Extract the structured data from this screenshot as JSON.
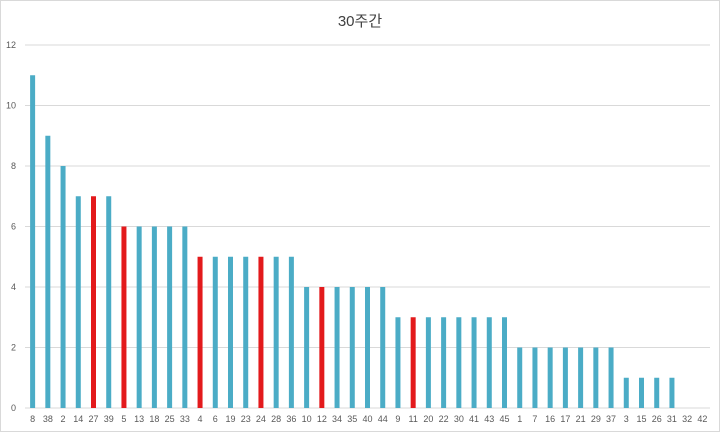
{
  "chart_data": {
    "type": "bar",
    "title": "30주간",
    "xlabel": "",
    "ylabel": "",
    "ylim": [
      0,
      12
    ],
    "ytick_step": 2,
    "grid": true,
    "legend": "none",
    "colors": {
      "default": "#4bacc6",
      "highlight": "#e31a1c",
      "grid": "#d9d9d9"
    },
    "categories": [
      "8",
      "38",
      "2",
      "14",
      "27",
      "39",
      "5",
      "13",
      "18",
      "25",
      "33",
      "4",
      "6",
      "19",
      "23",
      "24",
      "28",
      "36",
      "10",
      "12",
      "34",
      "35",
      "40",
      "44",
      "9",
      "11",
      "20",
      "22",
      "30",
      "41",
      "43",
      "45",
      "1",
      "7",
      "16",
      "17",
      "21",
      "29",
      "37",
      "3",
      "15",
      "26",
      "31",
      "32",
      "42"
    ],
    "values": [
      11,
      9,
      8,
      7,
      7,
      7,
      6,
      6,
      6,
      6,
      6,
      5,
      5,
      5,
      5,
      5,
      5,
      5,
      4,
      4,
      4,
      4,
      4,
      4,
      3,
      3,
      3,
      3,
      3,
      3,
      3,
      3,
      2,
      2,
      2,
      2,
      2,
      2,
      2,
      1,
      1,
      1,
      1,
      0,
      0
    ],
    "highlighted": [
      "27",
      "5",
      "4",
      "24",
      "12",
      "11"
    ]
  }
}
